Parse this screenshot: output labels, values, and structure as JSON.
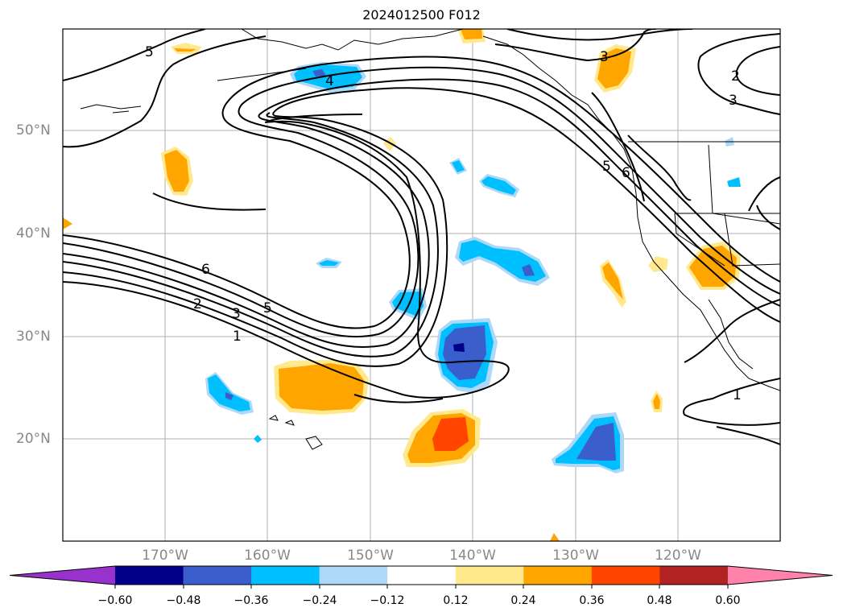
{
  "title": "2024012500 F012",
  "map": {
    "lat_labels": [
      "50°N",
      "40°N",
      "30°N",
      "20°N"
    ],
    "lon_labels": [
      "170°W",
      "160°W",
      "150°W",
      "140°W",
      "130°W",
      "120°W"
    ],
    "contour_labels": [
      "5",
      "4",
      "3",
      "2",
      "3",
      "5",
      "6",
      "6",
      "2",
      "3",
      "5",
      "1",
      "1"
    ]
  },
  "colorbar": {
    "ticks": [
      "−0.60",
      "−0.48",
      "−0.36",
      "−0.24",
      "−0.12",
      "0.12",
      "0.24",
      "0.36",
      "0.48",
      "0.60"
    ],
    "colors": [
      "#9932cc",
      "#00008b",
      "#3a5fcd",
      "#00bfff",
      "#add8f7",
      "#ffffff",
      "#ffe98c",
      "#ffa500",
      "#ff4500",
      "#b22222",
      "#ff82ab"
    ]
  }
}
